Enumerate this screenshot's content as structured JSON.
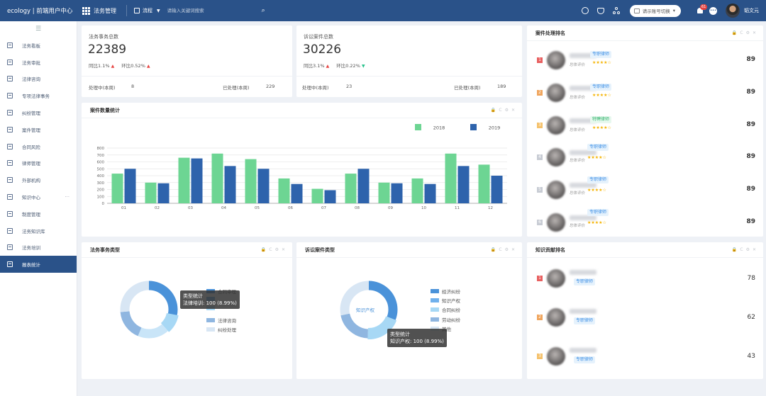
{
  "topbar": {
    "brand": "ecology | 前端用户中心",
    "menu_title": "法务管理",
    "search_scope": "流程",
    "search_placeholder": "请输入关键词搜索",
    "account_switch": "请示账号切换",
    "notification_count": "61",
    "chat_badge": "•••",
    "user_name": "韬文元"
  },
  "sidebar": {
    "items": [
      {
        "label": "法务看板"
      },
      {
        "label": "法务审批"
      },
      {
        "label": "法律咨询"
      },
      {
        "label": "专项法律事务"
      },
      {
        "label": "纠纷管理"
      },
      {
        "label": "案件管理"
      },
      {
        "label": "合同风险"
      },
      {
        "label": "律师管理"
      },
      {
        "label": "外部机构"
      },
      {
        "label": "知识中心",
        "more": "···"
      },
      {
        "label": "制度管理"
      },
      {
        "label": "法务知识库"
      },
      {
        "label": "法务培训"
      },
      {
        "label": "报表统计",
        "active": true
      }
    ]
  },
  "stats": [
    {
      "label": "法务事务总数",
      "value": "22389",
      "yoy": "同比1.1%",
      "mom": "环比0.52%",
      "mom_dir": "up",
      "processing_label": "处理中(本周)",
      "processing_value": "8",
      "done_label": "已处理(本周)",
      "done_value": "229"
    },
    {
      "label": "诉讼案件总数",
      "value": "30226",
      "yoy": "同比3.1%",
      "mom": "环比0.22%",
      "mom_dir": "down",
      "processing_label": "处理中(本周)",
      "processing_value": "23",
      "done_label": "已处理(本周)",
      "done_value": "189"
    }
  ],
  "case_stats": {
    "title": "案件数量统计"
  },
  "panel_tools": {
    "lock": "🔒",
    "refresh": "C",
    "settings": "⚙",
    "close": "✕"
  },
  "chart_data": {
    "type": "bar",
    "categories": [
      "01",
      "02",
      "03",
      "04",
      "05",
      "06",
      "07",
      "08",
      "09",
      "10",
      "11",
      "12"
    ],
    "series": [
      {
        "name": "2018",
        "color": "#6dd593",
        "values": [
          430,
          300,
          660,
          720,
          640,
          360,
          210,
          430,
          300,
          360,
          720,
          560
        ]
      },
      {
        "name": "2019",
        "color": "#2e63ac",
        "values": [
          500,
          290,
          650,
          540,
          500,
          280,
          190,
          500,
          290,
          280,
          540,
          400
        ]
      }
    ],
    "ylim": [
      0,
      800
    ],
    "yticks": [
      "0",
      "100",
      "200",
      "300",
      "400",
      "500",
      "600",
      "700",
      "800"
    ],
    "legend": "top-right",
    "title": "案件数量统计"
  },
  "ranking": {
    "title": "案件处理排名",
    "eval_label": "总体评价",
    "rows": [
      {
        "rank": "1",
        "rank_color": "#e86060",
        "tag": "专职律师",
        "tag_style": "blue",
        "stars": "★★★★☆",
        "score": "89"
      },
      {
        "rank": "2",
        "rank_color": "#f0a55d",
        "tag": "专职律师",
        "tag_style": "blue",
        "stars": "★★★★☆",
        "score": "89"
      },
      {
        "rank": "3",
        "rank_color": "#f5c16b",
        "tag": "特聘律师",
        "tag_style": "green",
        "stars": "★★★★☆",
        "score": "89"
      },
      {
        "rank": "4",
        "rank_color": "#c8ccd4",
        "tag": "专职律师",
        "tag_style": "blue",
        "stars": "★★★★☆",
        "score": "89"
      },
      {
        "rank": "5",
        "rank_color": "#c8ccd4",
        "tag": "专职律师",
        "tag_style": "blue",
        "stars": "★★★★☆",
        "score": "89"
      },
      {
        "rank": "6",
        "rank_color": "#c8ccd4",
        "tag": "专职律师",
        "tag_style": "blue",
        "stars": "★★★★☆",
        "score": "89"
      }
    ]
  },
  "affairs_types": {
    "title": "法务事务类型",
    "legend": [
      "合同审理",
      "",
      "",
      "法律咨询",
      "纠纷处理"
    ],
    "tooltip_title": "类型统计",
    "tooltip_value": "法律培训: 100 (8.99%)"
  },
  "case_types": {
    "title": "诉讼案件类型",
    "center_label": "知识产权",
    "legend": [
      "经济纠纷",
      "知识产权",
      "合同纠纷",
      "劳动纠纷",
      "其他"
    ],
    "tooltip_title": "类型统计",
    "tooltip_value": "知识产权: 100 (8.99%)"
  },
  "knowledge": {
    "title": "知识贡献排名",
    "rows": [
      {
        "rank": "1",
        "rank_color": "#e86060",
        "tag": "专职律师",
        "score": "78"
      },
      {
        "rank": "2",
        "rank_color": "#f0a55d",
        "tag": "专职律师",
        "score": "62"
      },
      {
        "rank": "3",
        "rank_color": "#f5c16b",
        "tag": "专职律师",
        "score": "43"
      }
    ]
  }
}
